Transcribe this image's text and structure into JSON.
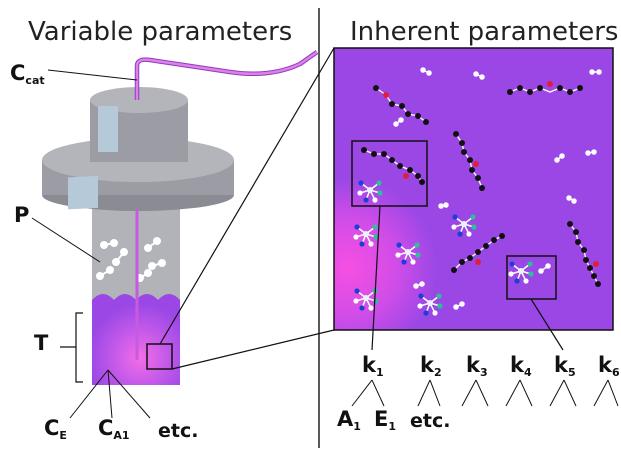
{
  "left_title": "Variable parameters",
  "right_title": "Inherent parameters",
  "reactor_labels": {
    "ccat_main": "C",
    "ccat_sub": "cat",
    "p": "P",
    "t": "T",
    "ce_main": "C",
    "ce_sub": "E",
    "ca1_main": "C",
    "ca1_sub": "A1",
    "etc": "etc."
  },
  "k_labels": [
    {
      "main": "k",
      "sub": "1"
    },
    {
      "main": "k",
      "sub": "2"
    },
    {
      "main": "k",
      "sub": "3"
    },
    {
      "main": "k",
      "sub": "4"
    },
    {
      "main": "k",
      "sub": "5"
    },
    {
      "main": "k",
      "sub": "6"
    }
  ],
  "k1_children": [
    {
      "main": "A",
      "sub": "1"
    },
    {
      "main": "E",
      "sub": "1"
    }
  ],
  "k2_child": "etc.",
  "colors": {
    "purple": "#9a47e6",
    "pink": "#f14ae6",
    "tube": "#d06fe3",
    "gray": "#9c9ca4",
    "gray_dark": "#7d7d86",
    "window": "#b6c9d9"
  }
}
